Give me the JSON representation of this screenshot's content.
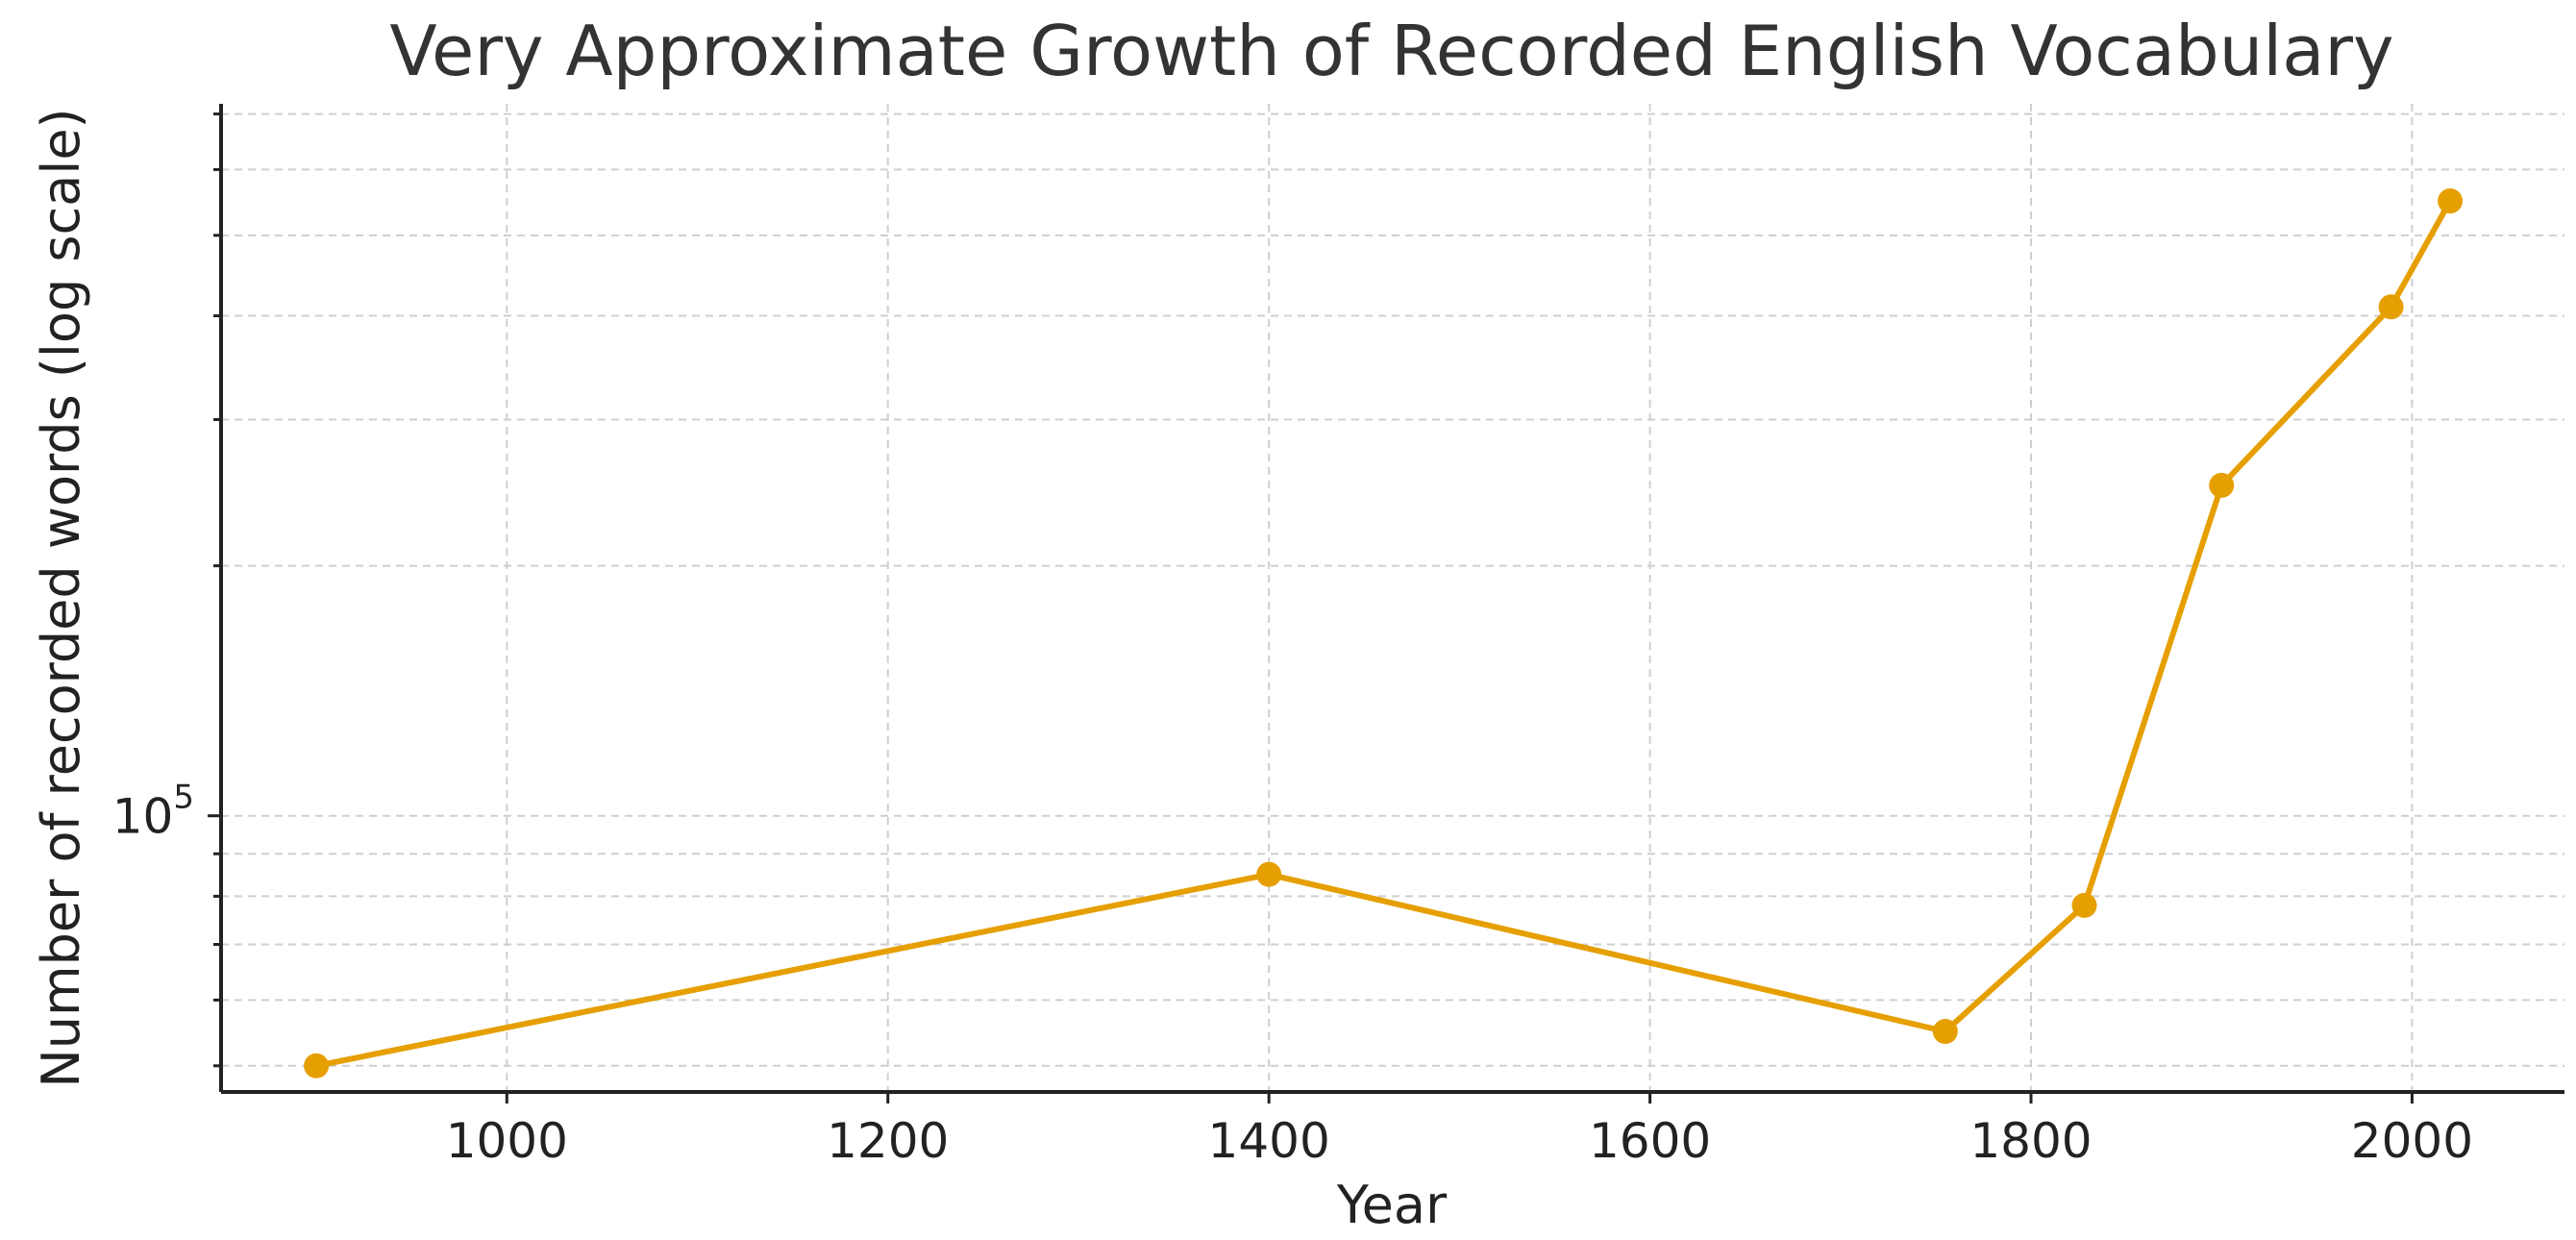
{
  "chart_data": {
    "type": "line",
    "title": "Very Approximate Growth of Recorded English Vocabulary",
    "xlabel": "Year",
    "ylabel": "Number of recorded words (log scale)",
    "yscale": "log",
    "xlim": [
      850,
      2080
    ],
    "ylim": [
      46500,
      720000
    ],
    "x_ticks": [
      1000,
      1200,
      1400,
      1600,
      1800,
      2000
    ],
    "y_major_tick": {
      "base": "10",
      "exponent": "5",
      "value": 100000
    },
    "grid": true,
    "series": [
      {
        "color": "#E69F00",
        "x": [
          900,
          1400,
          1755,
          1828,
          1900,
          1989,
          2020
        ],
        "y": [
          50000,
          85000,
          55000,
          78000,
          250000,
          410000,
          550000
        ]
      }
    ]
  }
}
